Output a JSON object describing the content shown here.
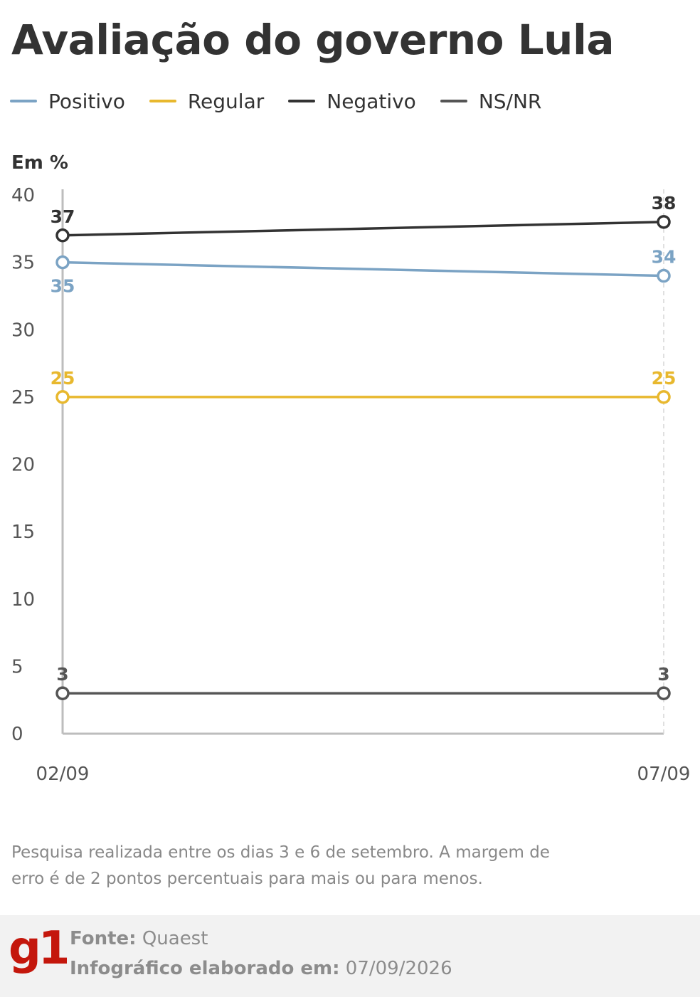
{
  "title": "Avaliação do governo Lula",
  "unit_label": "Em %",
  "chart_data": {
    "type": "line",
    "x": [
      "02/09",
      "07/09"
    ],
    "ylim": [
      0,
      40
    ],
    "yticks": [
      0,
      5,
      10,
      15,
      20,
      25,
      30,
      35,
      40
    ],
    "grid": false,
    "legend_position": "top-left",
    "series": [
      {
        "name": "Positivo",
        "values": [
          35,
          34
        ],
        "labels": [
          "35",
          "34"
        ],
        "color": "#7ba3c4"
      },
      {
        "name": "Regular",
        "values": [
          25,
          25
        ],
        "labels": [
          "25",
          "25"
        ],
        "color": "#e8b82e"
      },
      {
        "name": "Negativo",
        "values": [
          37,
          38
        ],
        "labels": [
          "37",
          "38"
        ],
        "color": "#333333"
      },
      {
        "name": "NS/NR",
        "values": [
          3,
          3
        ],
        "labels": [
          "3",
          "3"
        ],
        "color": "#555555"
      }
    ]
  },
  "note": "Pesquisa realizada entre os dias 3 e 6 de setembro. A margem de erro é de 2 pontos percentuais para mais ou para menos.",
  "footer": {
    "logo": "g1",
    "source_label": "Fonte:",
    "source_value": "Quaest",
    "made_label": "Infográfico elaborado em:",
    "made_value": "07/09/2026"
  }
}
